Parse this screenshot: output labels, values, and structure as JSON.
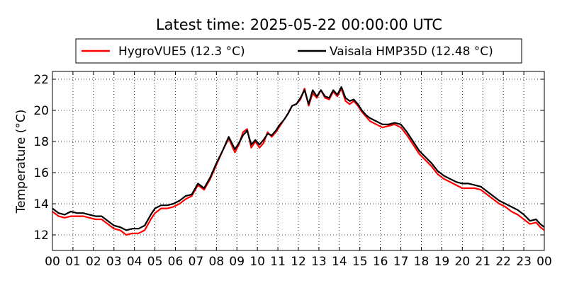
{
  "chart_data": {
    "type": "line",
    "title": "Latest time: 2025-05-22 00:00:00 UTC",
    "xlabel": "",
    "ylabel": "Temperature (°C)",
    "xlim": [
      0,
      24
    ],
    "ylim": [
      11,
      22.5
    ],
    "x_tick_values": [
      0,
      1,
      2,
      3,
      4,
      5,
      6,
      7,
      8,
      9,
      10,
      11,
      12,
      13,
      14,
      15,
      16,
      17,
      18,
      19,
      20,
      21,
      22,
      23,
      24
    ],
    "x_tick_labels": [
      "00",
      "01",
      "02",
      "03",
      "04",
      "05",
      "06",
      "07",
      "08",
      "09",
      "10",
      "11",
      "12",
      "13",
      "14",
      "15",
      "16",
      "17",
      "18",
      "19",
      "20",
      "21",
      "22",
      "23",
      "00"
    ],
    "y_ticks": [
      12,
      14,
      16,
      18,
      20,
      22
    ],
    "grid": true,
    "legend_position": "top-center",
    "series": [
      {
        "name": "HygroVUE5 (12.3 °C)",
        "color": "#ff0000",
        "x": [
          0,
          0.3,
          0.6,
          0.9,
          1.2,
          1.5,
          1.8,
          2.1,
          2.4,
          2.7,
          3.0,
          3.3,
          3.6,
          3.9,
          4.2,
          4.5,
          4.8,
          5.0,
          5.3,
          5.6,
          5.9,
          6.2,
          6.5,
          6.8,
          7.1,
          7.4,
          7.7,
          8.0,
          8.3,
          8.6,
          8.9,
          9.1,
          9.3,
          9.5,
          9.7,
          9.9,
          10.1,
          10.3,
          10.5,
          10.7,
          10.9,
          11.1,
          11.3,
          11.5,
          11.7,
          11.9,
          12.1,
          12.3,
          12.5,
          12.7,
          12.9,
          13.1,
          13.3,
          13.5,
          13.7,
          13.9,
          14.1,
          14.3,
          14.5,
          14.7,
          14.9,
          15.1,
          15.3,
          15.5,
          15.8,
          16.1,
          16.4,
          16.7,
          17.0,
          17.3,
          17.6,
          17.9,
          18.2,
          18.5,
          18.8,
          19.1,
          19.4,
          19.7,
          20.0,
          20.3,
          20.6,
          20.9,
          21.2,
          21.5,
          21.8,
          22.1,
          22.4,
          22.7,
          23.0,
          23.3,
          23.6,
          23.8,
          24.0
        ],
        "y": [
          13.5,
          13.2,
          13.1,
          13.2,
          13.2,
          13.2,
          13.1,
          13.0,
          13.0,
          12.7,
          12.4,
          12.3,
          12.0,
          12.1,
          12.1,
          12.3,
          13.0,
          13.4,
          13.7,
          13.7,
          13.8,
          14.0,
          14.3,
          14.5,
          15.2,
          14.9,
          15.6,
          16.5,
          17.4,
          18.2,
          17.3,
          17.8,
          18.6,
          18.8,
          17.6,
          18.0,
          17.6,
          17.9,
          18.6,
          18.3,
          18.6,
          19.0,
          19.4,
          19.8,
          20.3,
          20.4,
          20.7,
          21.4,
          20.3,
          21.1,
          20.8,
          21.3,
          20.8,
          20.7,
          21.2,
          20.9,
          21.4,
          20.6,
          20.4,
          20.6,
          20.3,
          19.9,
          19.6,
          19.3,
          19.1,
          18.9,
          19.0,
          19.1,
          18.9,
          18.4,
          17.8,
          17.2,
          16.8,
          16.4,
          15.9,
          15.6,
          15.4,
          15.2,
          15.0,
          15.0,
          15.0,
          14.9,
          14.6,
          14.3,
          14.0,
          13.8,
          13.5,
          13.3,
          13.0,
          12.7,
          12.8,
          12.5,
          12.3
        ]
      },
      {
        "name": "Vaisala HMP35D (12.48 °C)",
        "color": "#000000",
        "x": [
          0,
          0.3,
          0.6,
          0.9,
          1.2,
          1.5,
          1.8,
          2.1,
          2.4,
          2.7,
          3.0,
          3.3,
          3.6,
          3.9,
          4.2,
          4.5,
          4.8,
          5.0,
          5.3,
          5.6,
          5.9,
          6.2,
          6.5,
          6.8,
          7.1,
          7.4,
          7.7,
          8.0,
          8.3,
          8.6,
          8.9,
          9.1,
          9.3,
          9.5,
          9.7,
          9.9,
          10.1,
          10.3,
          10.5,
          10.7,
          10.9,
          11.1,
          11.3,
          11.5,
          11.7,
          11.9,
          12.1,
          12.3,
          12.5,
          12.7,
          12.9,
          13.1,
          13.3,
          13.5,
          13.7,
          13.9,
          14.1,
          14.3,
          14.5,
          14.7,
          14.9,
          15.1,
          15.3,
          15.5,
          15.8,
          16.1,
          16.4,
          16.7,
          17.0,
          17.3,
          17.6,
          17.9,
          18.2,
          18.5,
          18.8,
          19.1,
          19.4,
          19.7,
          20.0,
          20.3,
          20.6,
          20.9,
          21.2,
          21.5,
          21.8,
          22.1,
          22.4,
          22.7,
          23.0,
          23.3,
          23.6,
          23.8,
          24.0
        ],
        "y": [
          13.7,
          13.4,
          13.3,
          13.5,
          13.4,
          13.4,
          13.3,
          13.2,
          13.2,
          12.9,
          12.6,
          12.5,
          12.3,
          12.4,
          12.4,
          12.6,
          13.3,
          13.7,
          13.9,
          13.9,
          14.0,
          14.2,
          14.5,
          14.6,
          15.3,
          15.0,
          15.7,
          16.6,
          17.4,
          18.3,
          17.5,
          17.9,
          18.4,
          18.7,
          17.8,
          18.1,
          17.8,
          18.1,
          18.5,
          18.4,
          18.7,
          19.1,
          19.4,
          19.8,
          20.3,
          20.4,
          20.8,
          21.3,
          20.4,
          21.3,
          20.9,
          21.3,
          20.9,
          20.8,
          21.3,
          21.0,
          21.5,
          20.8,
          20.6,
          20.7,
          20.4,
          20.0,
          19.7,
          19.5,
          19.3,
          19.1,
          19.1,
          19.2,
          19.1,
          18.6,
          18.0,
          17.4,
          17.0,
          16.6,
          16.1,
          15.8,
          15.6,
          15.4,
          15.3,
          15.3,
          15.2,
          15.1,
          14.8,
          14.5,
          14.2,
          14.0,
          13.8,
          13.6,
          13.3,
          12.9,
          13.0,
          12.7,
          12.5
        ]
      }
    ]
  }
}
